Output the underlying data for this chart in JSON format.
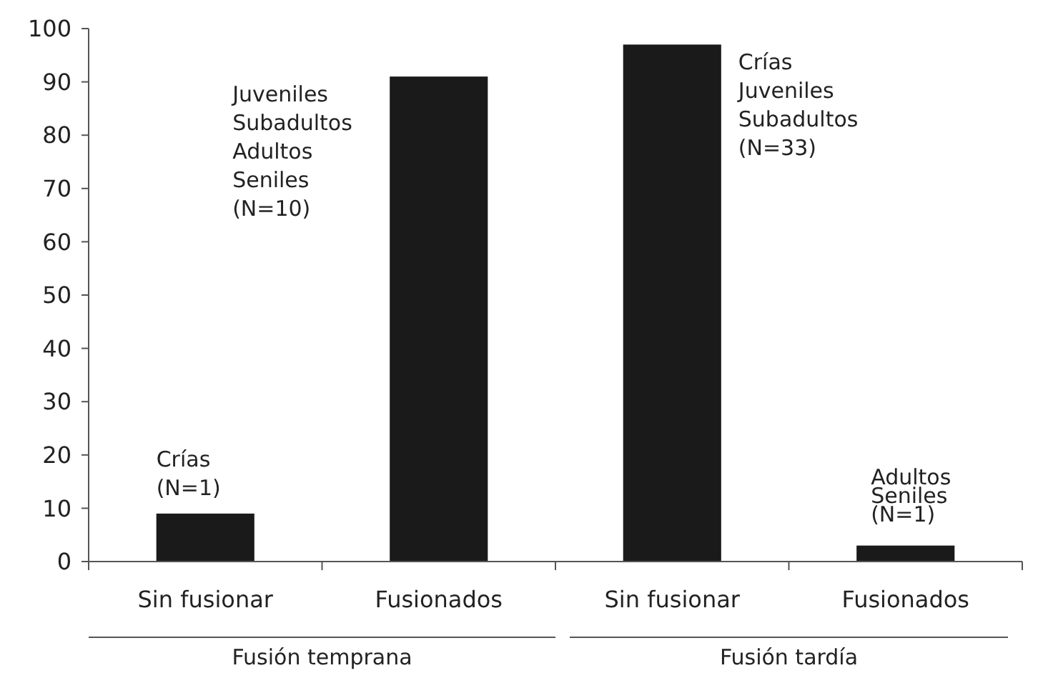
{
  "chart_data": {
    "type": "bar",
    "categories": [
      "Sin fusionar",
      "Fusionados",
      "Sin fusionar",
      "Fusionados"
    ],
    "values": [
      9,
      91,
      97,
      3
    ],
    "color": "#1a1a1a",
    "ylim": [
      0,
      100
    ],
    "yticks": [
      0,
      10,
      20,
      30,
      40,
      50,
      60,
      70,
      80,
      90,
      100
    ],
    "annotations": [
      "Crías\n(N=1)",
      "Juveniles\nSubadultos\nAdultos\nSeniles\n(N=10)",
      "Crías\nJuveniles\nSubadultos\n(N=33)",
      "Adultos\nSeniles\n(N=1)",
      "Fusión temprana",
      "Fusión tardía"
    ]
  }
}
